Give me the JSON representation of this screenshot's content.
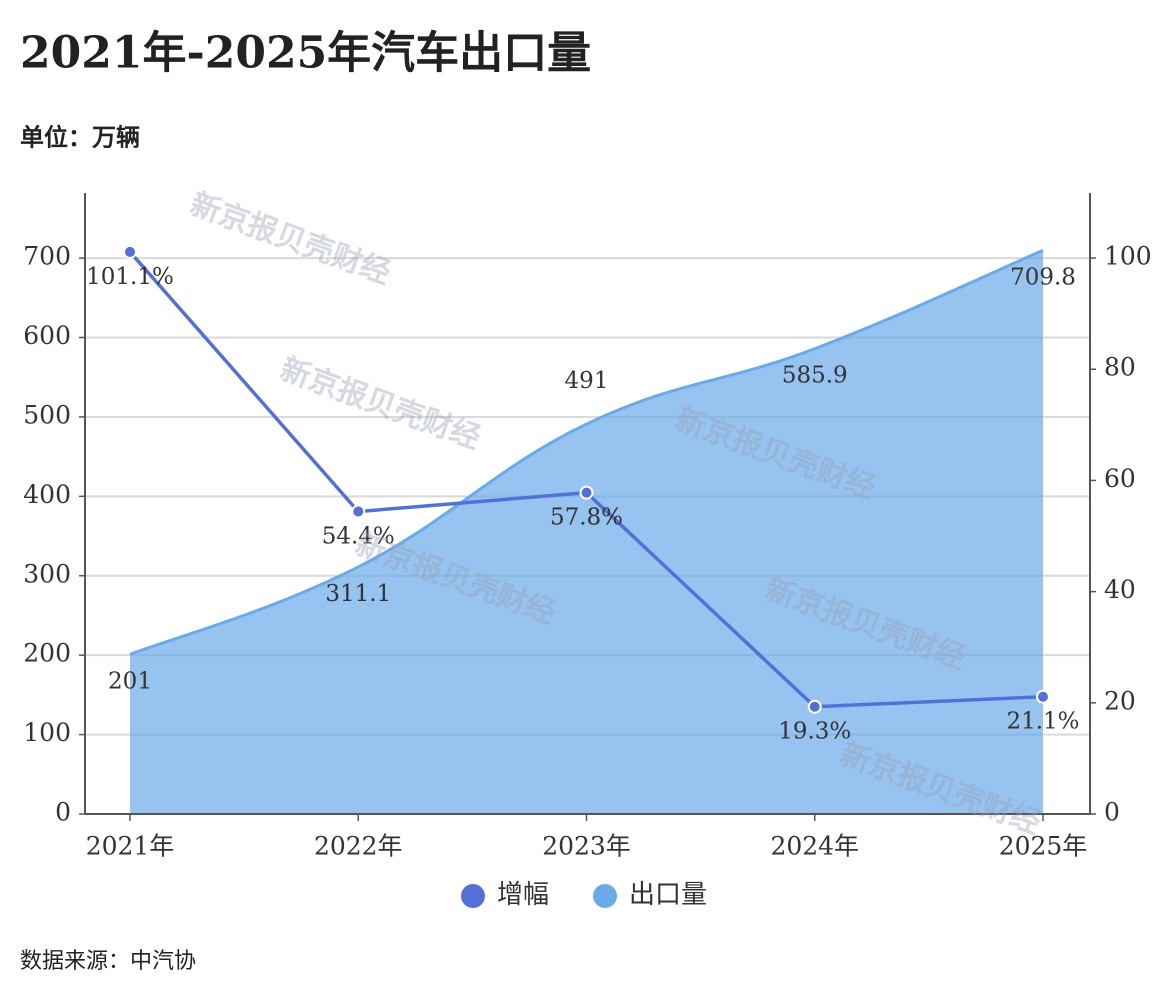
{
  "chart_data": {
    "type": "area-line",
    "title": "2021年-2025年汽车出口量",
    "subtitle": "单位：万辆",
    "source": "数据来源：中汽协",
    "watermark": "新京报贝壳财经",
    "categories": [
      "2021年",
      "2022年",
      "2023年",
      "2024年",
      "2025年"
    ],
    "series": [
      {
        "name": "增幅",
        "color": "#5470d6",
        "axis": "y2",
        "values": [
          101.1,
          54.4,
          57.8,
          19.3,
          21.1
        ],
        "value_labels": [
          "101.1%",
          "54.4%",
          "57.8%",
          "19.3%",
          "21.1%"
        ]
      },
      {
        "name": "出口量",
        "color": "#6aaaea",
        "values": [
          201,
          311.1,
          491,
          585.9,
          709.8
        ]
      }
    ],
    "ylim": [
      0,
      782
    ],
    "yticks": [
      0,
      100,
      200,
      300,
      400,
      500,
      600,
      700
    ],
    "y2lim": [
      0,
      111.7
    ],
    "y2ticks": [
      0,
      20,
      40,
      60,
      80,
      100
    ],
    "grid": true
  }
}
